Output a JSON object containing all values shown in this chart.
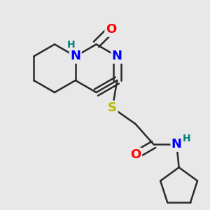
{
  "background_color": "#e8e8e8",
  "bond_color": "#2a2a2a",
  "atom_colors": {
    "N": "#0000ff",
    "O": "#ff0000",
    "S": "#b8b800",
    "H": "#008080",
    "C": "#2a2a2a"
  },
  "bond_width": 1.8,
  "font_size_atom": 13,
  "font_size_h": 10
}
